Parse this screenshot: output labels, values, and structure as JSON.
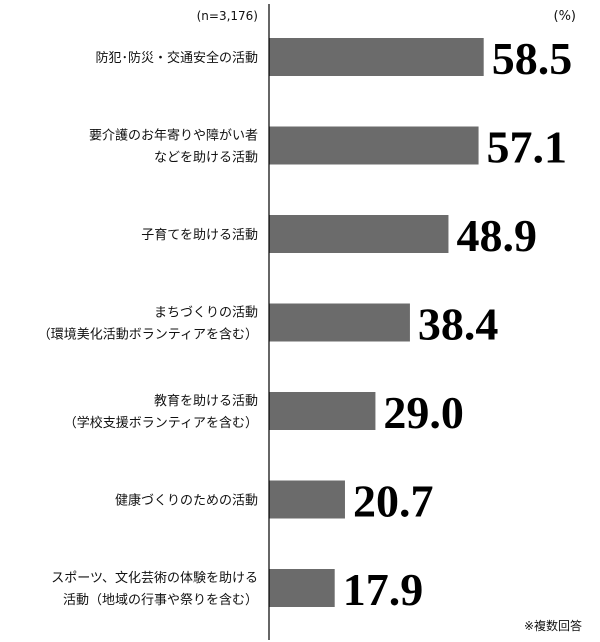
{
  "chart_data": {
    "type": "bar",
    "orientation": "horizontal",
    "sample_note": "(n=3,176)",
    "unit": "(%)",
    "footnote": "※複数回答",
    "categories": [
      [
        "防犯･防災・交通安全の活動"
      ],
      [
        "要介護のお年寄りや障がい者",
        "などを助ける活動"
      ],
      [
        "子育てを助ける活動"
      ],
      [
        "まちづくりの活動",
        "（環境美化活動ボランティアを含む）"
      ],
      [
        "教育を助ける活動",
        "（学校支援ボランティアを含む）"
      ],
      [
        "健康づくりのための活動"
      ],
      [
        "スポーツ、文化芸術の体験を助ける",
        "活動（地域の行事や祭りを含む）"
      ]
    ],
    "values": [
      58.5,
      57.1,
      48.9,
      38.4,
      29.0,
      20.7,
      17.9
    ],
    "value_labels": [
      "58.5",
      "57.1",
      "48.9",
      "38.4",
      "29.0",
      "20.7",
      "17.9"
    ],
    "xlim": [
      0,
      100
    ],
    "bar_color": "#6b6b6b",
    "axis_color": "#000000"
  }
}
